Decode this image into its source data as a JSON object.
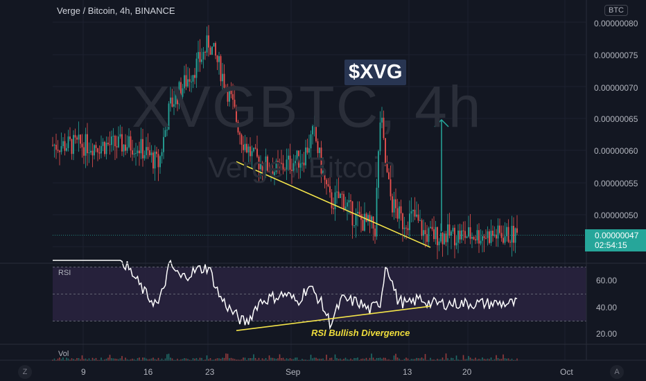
{
  "legend": {
    "title": "Verge / Bitcoin, 4h, BINANCE"
  },
  "watermark": {
    "symbol": "XVGBTC, 4h",
    "name": "Verge / Bitcoin"
  },
  "annotations": {
    "ticker_tag": "$XVG",
    "rsi_divergence": "RSI Bullish Divergence"
  },
  "price_axis": {
    "currency": "BTC",
    "ticks": [
      "0.00000080",
      "0.00000075",
      "0.00000070",
      "0.00000065",
      "0.00000060",
      "0.00000055",
      "0.00000050"
    ],
    "current_price": "0.00000047",
    "countdown": "02:54:15"
  },
  "rsi_pane": {
    "label": "RSI",
    "ticks": [
      "60.00",
      "40.00",
      "20.00"
    ]
  },
  "volume_pane": {
    "label": "Vol"
  },
  "time_axis": {
    "labels": [
      "9",
      "16",
      "23",
      "Sep",
      "13",
      "20",
      "Oct"
    ]
  },
  "controls": {
    "left_icon": "Z",
    "right_icon": "A"
  },
  "colors": {
    "up": "#26a69a",
    "down": "#ef5350",
    "rsi_line": "#ffffff",
    "trendline": "#f5e54a",
    "rsi_band": "#2a2340",
    "background": "#131722"
  },
  "chart_data": {
    "type": "candlestick",
    "title": "Verge / Bitcoin, 4h, BINANCE",
    "y_axis_unit": "BTC",
    "ylim": [
      4.3e-07,
      8.1e-07
    ],
    "price_path": {
      "dates": [
        "Aug 5",
        "Aug 9",
        "Aug 11",
        "Aug 14",
        "Aug 17",
        "Aug 18",
        "Aug 20",
        "Aug 22",
        "Aug 24",
        "Aug 26",
        "Aug 28",
        "Aug 30",
        "Sep 1",
        "Sep 4",
        "Sep 6",
        "Sep 8",
        "Sep 9",
        "Sep 11",
        "Sep 13",
        "Sep 15",
        "Sep 17",
        "Sep 18",
        "Sep 19",
        "Sep 20",
        "Sep 22",
        "Sep 24",
        "Sep 26"
      ],
      "close": [
        6.1e-07,
        5.8e-07,
        6.7e-07,
        7.1e-07,
        7.5e-07,
        7.7e-07,
        7.3e-07,
        6.8e-07,
        6.2e-07,
        5.9e-07,
        5.8e-07,
        5.7e-07,
        5.8e-07,
        5.9e-07,
        6.3e-07,
        5.5e-07,
        5.2e-07,
        5.3e-07,
        5e-07,
        4.9e-07,
        4.8e-07,
        6.6e-07,
        5.7e-07,
        5.2e-07,
        4.9e-07,
        5e-07,
        4.7e-07
      ]
    },
    "rsi": {
      "ylim": [
        16,
        75
      ],
      "band": [
        30,
        70
      ],
      "dates": [
        "Aug 5",
        "Aug 7",
        "Aug 9",
        "Aug 11",
        "Aug 13",
        "Aug 16",
        "Aug 18",
        "Aug 20",
        "Aug 22",
        "Aug 24",
        "Aug 25",
        "Aug 27",
        "Aug 29",
        "Sep 1",
        "Sep 3",
        "Sep 5",
        "Sep 7",
        "Sep 9",
        "Sep 11",
        "Sep 14",
        "Sep 16",
        "Sep 18",
        "Sep 19",
        "Sep 21",
        "Sep 23",
        "Sep 25",
        "Sep 27"
      ],
      "values": [
        60,
        48,
        42,
        72,
        62,
        68,
        70,
        48,
        38,
        30,
        29,
        44,
        47,
        50,
        44,
        56,
        46,
        28,
        46,
        44,
        38,
        44,
        74,
        46,
        42,
        47,
        43
      ]
    },
    "trendlines": [
      {
        "pane": "price",
        "from": [
          "Aug 23",
          5.84e-07
        ],
        "to": [
          "Sep 27",
          4.51e-07
        ]
      },
      {
        "pane": "rsi",
        "from": [
          "Aug 23",
          23
        ],
        "to": [
          "Sep 27",
          41
        ]
      }
    ],
    "target_arrow": {
      "date": "Sep 29",
      "from": 4.76e-07,
      "to": 6.49e-07
    }
  }
}
